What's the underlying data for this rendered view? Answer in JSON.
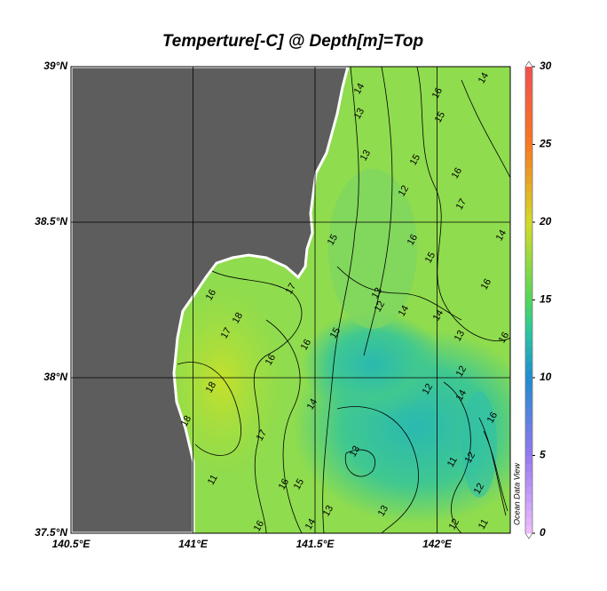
{
  "title": "Temperture[-C] @ Depth[m]=Top",
  "map": {
    "xlim": [
      140.5,
      142.3
    ],
    "ylim": [
      37.5,
      39
    ],
    "xticks": [
      {
        "value": 140.5,
        "label": "140.5°E"
      },
      {
        "value": 141,
        "label": "141°E"
      },
      {
        "value": 141.5,
        "label": "141.5°E"
      },
      {
        "value": 142,
        "label": "142°E"
      }
    ],
    "yticks": [
      {
        "value": 37.5,
        "label": "37.5°N"
      },
      {
        "value": 38,
        "label": "38°N"
      },
      {
        "value": 38.5,
        "label": "38.5°N"
      },
      {
        "value": 39,
        "label": "39°N"
      }
    ],
    "contour_labels": [
      14,
      13,
      16,
      15,
      14,
      13,
      15,
      16,
      12,
      17,
      15,
      16,
      15,
      14,
      16,
      13,
      12,
      14,
      14,
      13,
      17,
      18,
      17,
      16,
      16,
      16,
      15,
      12,
      14,
      12,
      16,
      18,
      18,
      17,
      13,
      16,
      15,
      13,
      11,
      11,
      12,
      12,
      13,
      14,
      16,
      12,
      11,
      16,
      14
    ]
  },
  "colorbar": {
    "lim": [
      0,
      30
    ],
    "ticks": [
      0,
      5,
      10,
      15,
      20,
      25,
      30
    ]
  },
  "credit": "Ocean Data View"
}
